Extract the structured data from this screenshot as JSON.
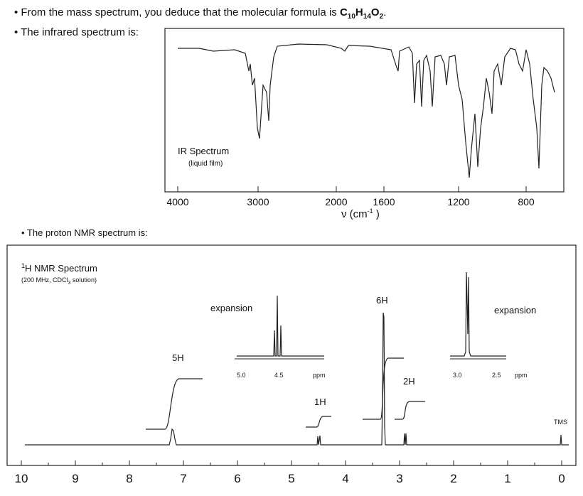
{
  "intro": {
    "formula_line": "• From the mass spectrum, you deduce that the molecular formula is",
    "formula_parts": [
      "C",
      "10",
      "H",
      "14",
      "O",
      "2"
    ],
    "formula_end": ".",
    "ir_line": "• The infrared spectrum is:",
    "nmr_line": "• The proton NMR spectrum is:"
  },
  "ir": {
    "label": "IR Spectrum",
    "sublabel": "(liquid film)",
    "ticks": [
      "4000",
      "3000",
      "2000",
      "1600",
      "1200",
      "800"
    ],
    "axis_label": [
      "ν (cm",
      "-1",
      " )"
    ]
  },
  "nmr": {
    "title_sup": "1",
    "title": "H NMR Spectrum",
    "subtitle": [
      "(200 MHz, CDCl",
      "3",
      " solution)"
    ],
    "ticks": [
      "10",
      "9",
      "8",
      "7",
      "6",
      "5",
      "4",
      "3",
      "2",
      "1",
      "0"
    ],
    "peak_labels": [
      "5H",
      "1H",
      "6H",
      "2H",
      "TMS"
    ],
    "expansion_left": {
      "label": "expansion",
      "ticks": [
        "5.0",
        "4.5",
        "ppm"
      ]
    },
    "expansion_right": {
      "label": "expansion",
      "ticks": [
        "3.0",
        "2.5",
        "ppm"
      ]
    }
  }
}
